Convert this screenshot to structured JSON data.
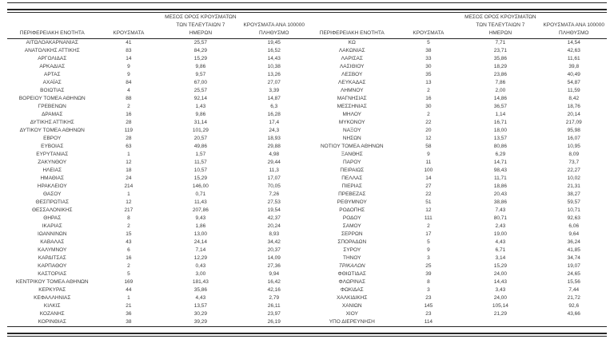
{
  "page": {
    "background": "#ffffff",
    "text_color": "#3a3a3a",
    "rule_color": "#262626",
    "decimal_separator": ","
  },
  "table_headers": {
    "region": "ΠΕΡΙΦΕΡΕΙΑΚΗ ΕΝΟΤΗΤΑ",
    "cases": "ΚΡΟΥΣΜΑΤΑ",
    "avg7": "ΜΕΣΟΣ ΟΡΟΣ ΚΡΟΥΣΜΑΤΩΝ\nΤΩΝ ΤΕΛΕΥΤΑΙΩΝ 7\nΗΜΕΡΩΝ",
    "per100k": "ΚΡΟΥΣΜΑΤΑ ΑΝΑ 100000\nΠΛΗΘΥΣΜΟ"
  },
  "left_table": {
    "rows": [
      {
        "region": "ΑΙΤΩΛΟΑΚΑΡΝΑΝΙΑΣ",
        "cases": "41",
        "avg7": "25,57",
        "per100k": "19,45"
      },
      {
        "region": "ΑΝΑΤΟΛΙΚΗΣ ΑΤΤΙΚΗΣ",
        "cases": "83",
        "avg7": "84,29",
        "per100k": "16,52"
      },
      {
        "region": "ΑΡΓΟΛΙΔΑΣ",
        "cases": "14",
        "avg7": "15,29",
        "per100k": "14,43"
      },
      {
        "region": "ΑΡΚΑΔΙΑΣ",
        "cases": "9",
        "avg7": "9,86",
        "per100k": "10,38"
      },
      {
        "region": "ΑΡΤΑΣ",
        "cases": "9",
        "avg7": "9,57",
        "per100k": "13,26"
      },
      {
        "region": "ΑΧΑΪΑΣ",
        "cases": "84",
        "avg7": "67,00",
        "per100k": "27,07"
      },
      {
        "region": "ΒΟΙΩΤΙΑΣ",
        "cases": "4",
        "avg7": "25,57",
        "per100k": "3,39"
      },
      {
        "region": "ΒΟΡΕΙΟΥ ΤΟΜΕΑ ΑΘΗΝΩΝ",
        "cases": "88",
        "avg7": "92,14",
        "per100k": "14,87"
      },
      {
        "region": "ΓΡΕΒΕΝΩΝ",
        "cases": "2",
        "avg7": "1,43",
        "per100k": "6,3"
      },
      {
        "region": "ΔΡΑΜΑΣ",
        "cases": "16",
        "avg7": "9,86",
        "per100k": "16,28"
      },
      {
        "region": "ΔΥΤΙΚΗΣ ΑΤΤΙΚΗΣ",
        "cases": "28",
        "avg7": "31,14",
        "per100k": "17,4"
      },
      {
        "region": "ΔΥΤΙΚΟΥ ΤΟΜΕΑ ΑΘΗΝΩΝ",
        "cases": "119",
        "avg7": "101,29",
        "per100k": "24,3"
      },
      {
        "region": "ΕΒΡΟΥ",
        "cases": "28",
        "avg7": "20,57",
        "per100k": "18,93"
      },
      {
        "region": "ΕΥΒΟΙΑΣ",
        "cases": "63",
        "avg7": "49,86",
        "per100k": "29,88"
      },
      {
        "region": "ΕΥΡΥΤΑΝΙΑΣ",
        "cases": "1",
        "avg7": "1,57",
        "per100k": "4,98"
      },
      {
        "region": "ΖΑΚΥΝΘΟΥ",
        "cases": "12",
        "avg7": "11,57",
        "per100k": "29,44"
      },
      {
        "region": "ΗΛΕΙΑΣ",
        "cases": "18",
        "avg7": "10,57",
        "per100k": "11,3"
      },
      {
        "region": "ΗΜΑΘΙΑΣ",
        "cases": "24",
        "avg7": "15,29",
        "per100k": "17,07"
      },
      {
        "region": "ΗΡΑΚΛΕΙΟΥ",
        "cases": "214",
        "avg7": "146,00",
        "per100k": "70,05"
      },
      {
        "region": "ΘΑΣΟΥ",
        "cases": "1",
        "avg7": "0,71",
        "per100k": "7,26"
      },
      {
        "region": "ΘΕΣΠΡΩΤΙΑΣ",
        "cases": "12",
        "avg7": "11,43",
        "per100k": "27,53"
      },
      {
        "region": "ΘΕΣΣΑΛΟΝΙΚΗΣ",
        "cases": "217",
        "avg7": "207,86",
        "per100k": "19,54"
      },
      {
        "region": "ΘΗΡΑΣ",
        "cases": "8",
        "avg7": "9,43",
        "per100k": "42,37"
      },
      {
        "region": "ΙΚΑΡΙΑΣ",
        "cases": "2",
        "avg7": "1,86",
        "per100k": "20,24"
      },
      {
        "region": "ΙΩΑΝΝΙΝΩΝ",
        "cases": "15",
        "avg7": "13,00",
        "per100k": "8,93"
      },
      {
        "region": "ΚΑΒΑΛΑΣ",
        "cases": "43",
        "avg7": "24,14",
        "per100k": "34,42"
      },
      {
        "region": "ΚΑΛΥΜΝΟΥ",
        "cases": "6",
        "avg7": "7,14",
        "per100k": "20,37"
      },
      {
        "region": "ΚΑΡΔΙΤΣΑΣ",
        "cases": "16",
        "avg7": "12,29",
        "per100k": "14,09"
      },
      {
        "region": "ΚΑΡΠΑΘΟΥ",
        "cases": "2",
        "avg7": "0,43",
        "per100k": "27,36"
      },
      {
        "region": "ΚΑΣΤΟΡΙΑΣ",
        "cases": "5",
        "avg7": "3,00",
        "per100k": "9,94"
      },
      {
        "region": "ΚΕΝΤΡΙΚΟΥ ΤΟΜΕΑ ΑΘΗΝΩΝ",
        "cases": "169",
        "avg7": "181,43",
        "per100k": "16,42"
      },
      {
        "region": "ΚΕΡΚΥΡΑΣ",
        "cases": "44",
        "avg7": "35,86",
        "per100k": "42,16"
      },
      {
        "region": "ΚΕΦΑΛΛΗΝΙΑΣ",
        "cases": "1",
        "avg7": "4,43",
        "per100k": "2,79"
      },
      {
        "region": "ΚΙΛΚΙΣ",
        "cases": "21",
        "avg7": "13,57",
        "per100k": "26,11"
      },
      {
        "region": "ΚΟΖΑΝΗΣ",
        "cases": "36",
        "avg7": "30,29",
        "per100k": "23,97"
      },
      {
        "region": "ΚΟΡΙΝΘΙΑΣ",
        "cases": "38",
        "avg7": "39,29",
        "per100k": "26,19"
      }
    ]
  },
  "right_table": {
    "rows": [
      {
        "region": "ΚΩ",
        "cases": "5",
        "avg7": "7,71",
        "per100k": "14,54"
      },
      {
        "region": "ΛΑΚΩΝΙΑΣ",
        "cases": "38",
        "avg7": "23,71",
        "per100k": "42,63"
      },
      {
        "region": "ΛΑΡΙΣΑΣ",
        "cases": "33",
        "avg7": "35,86",
        "per100k": "11,61"
      },
      {
        "region": "ΛΑΣΙΘΙΟΥ",
        "cases": "30",
        "avg7": "18,29",
        "per100k": "39,8"
      },
      {
        "region": "ΛΕΣΒΟΥ",
        "cases": "35",
        "avg7": "23,86",
        "per100k": "40,49"
      },
      {
        "region": "ΛΕΥΚΑΔΑΣ",
        "cases": "13",
        "avg7": "7,86",
        "per100k": "54,87"
      },
      {
        "region": "ΛΗΜΝΟΥ",
        "cases": "2",
        "avg7": "2,00",
        "per100k": "11,59"
      },
      {
        "region": "ΜΑΓΝΗΣΙΑΣ",
        "cases": "16",
        "avg7": "14,86",
        "per100k": "8,42"
      },
      {
        "region": "ΜΕΣΣΗΝΙΑΣ",
        "cases": "30",
        "avg7": "36,57",
        "per100k": "18,76"
      },
      {
        "region": "ΜΗΛΟΥ",
        "cases": "2",
        "avg7": "1,14",
        "per100k": "20,14"
      },
      {
        "region": "ΜΥΚΟΝΟΥ",
        "cases": "22",
        "avg7": "16,71",
        "per100k": "217,09"
      },
      {
        "region": "ΝΑΞΟΥ",
        "cases": "20",
        "avg7": "18,00",
        "per100k": "95,98"
      },
      {
        "region": "ΝΗΣΩΝ",
        "cases": "12",
        "avg7": "13,57",
        "per100k": "16,07"
      },
      {
        "region": "ΝΟΤΙΟΥ ΤΟΜΕΑ ΑΘΗΝΩΝ",
        "cases": "58",
        "avg7": "80,86",
        "per100k": "10,95"
      },
      {
        "region": "ΞΑΝΘΗΣ",
        "cases": "9",
        "avg7": "6,29",
        "per100k": "8,09"
      },
      {
        "region": "ΠΑΡΟΥ",
        "cases": "11",
        "avg7": "14,71",
        "per100k": "73,7"
      },
      {
        "region": "ΠΕΙΡΑΙΩΣ",
        "cases": "100",
        "avg7": "98,43",
        "per100k": "22,27"
      },
      {
        "region": "ΠΕΛΛΑΣ",
        "cases": "14",
        "avg7": "11,71",
        "per100k": "10,02"
      },
      {
        "region": "ΠΙΕΡΙΑΣ",
        "cases": "27",
        "avg7": "18,86",
        "per100k": "21,31"
      },
      {
        "region": "ΠΡΕΒΕΖΑΣ",
        "cases": "22",
        "avg7": "20,43",
        "per100k": "38,27"
      },
      {
        "region": "ΡΕΘΥΜΝΟΥ",
        "cases": "51",
        "avg7": "38,86",
        "per100k": "59,57"
      },
      {
        "region": "ΡΟΔΟΠΗΣ",
        "cases": "12",
        "avg7": "7,43",
        "per100k": "10,71"
      },
      {
        "region": "ΡΟΔΟΥ",
        "cases": "111",
        "avg7": "80,71",
        "per100k": "92,63"
      },
      {
        "region": "ΣΑΜΟΥ",
        "cases": "2",
        "avg7": "2,43",
        "per100k": "6,06"
      },
      {
        "region": "ΣΕΡΡΩΝ",
        "cases": "17",
        "avg7": "19,00",
        "per100k": "9,64"
      },
      {
        "region": "ΣΠΟΡΑΔΩΝ",
        "cases": "5",
        "avg7": "4,43",
        "per100k": "36,24"
      },
      {
        "region": "ΣΥΡΟΥ",
        "cases": "9",
        "avg7": "6,71",
        "per100k": "41,85"
      },
      {
        "region": "ΤΗΝΟΥ",
        "cases": "3",
        "avg7": "3,14",
        "per100k": "34,74"
      },
      {
        "region": "ΤΡΙΚΑΛΩΝ",
        "cases": "25",
        "avg7": "15,29",
        "per100k": "19,07",
        "region_style": "italic"
      },
      {
        "region": "ΦΘΙΩΤΙΔΑΣ",
        "cases": "39",
        "avg7": "24,00",
        "per100k": "24,65"
      },
      {
        "region": "ΦΛΩΡΙΝΑΣ",
        "cases": "8",
        "avg7": "14,43",
        "per100k": "15,56"
      },
      {
        "region": "ΦΩΚΙΔΑΣ",
        "cases": "3",
        "avg7": "3,43",
        "per100k": "7,44"
      },
      {
        "region": "ΧΑΛΚΙΔΙΚΗΣ",
        "cases": "23",
        "avg7": "24,00",
        "per100k": "21,72"
      },
      {
        "region": "ΧΑΝΙΩΝ",
        "cases": "145",
        "avg7": "105,14",
        "per100k": "92,6"
      },
      {
        "region": "ΧΙΟΥ",
        "cases": "23",
        "avg7": "21,29",
        "per100k": "43,66"
      },
      {
        "region": "ΥΠΟ ΔΙΕΡΕΥΝΗΣΗ",
        "cases": "114",
        "avg7": "",
        "per100k": ""
      }
    ]
  }
}
